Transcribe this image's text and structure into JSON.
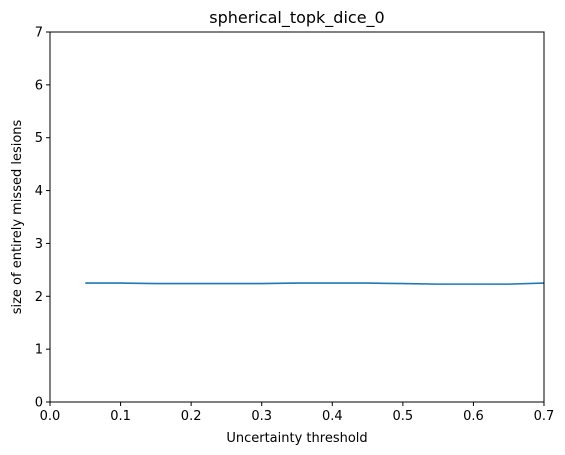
{
  "chart_data": {
    "type": "line",
    "title": "spherical_topk_dice_0",
    "xlabel": "Uncertainty threshold",
    "ylabel": "size of entirely missed lesions",
    "xlim": [
      0.0,
      0.7
    ],
    "ylim": [
      0,
      7
    ],
    "xticks": [
      0.0,
      0.1,
      0.2,
      0.3,
      0.4,
      0.5,
      0.6,
      0.7
    ],
    "xtick_labels": [
      "0.0",
      "0.1",
      "0.2",
      "0.3",
      "0.4",
      "0.5",
      "0.6",
      "0.7"
    ],
    "yticks": [
      0,
      1,
      2,
      3,
      4,
      5,
      6,
      7
    ],
    "ytick_labels": [
      "0",
      "1",
      "2",
      "3",
      "4",
      "5",
      "6",
      "7"
    ],
    "grid": false,
    "series": [
      {
        "color": "#1f77b4",
        "x": [
          0.05,
          0.1,
          0.15,
          0.2,
          0.25,
          0.3,
          0.35,
          0.4,
          0.45,
          0.5,
          0.55,
          0.6,
          0.65,
          0.7
        ],
        "y": [
          2.25,
          2.25,
          2.24,
          2.24,
          2.24,
          2.24,
          2.25,
          2.25,
          2.25,
          2.24,
          2.23,
          2.23,
          2.23,
          2.25
        ]
      }
    ]
  }
}
